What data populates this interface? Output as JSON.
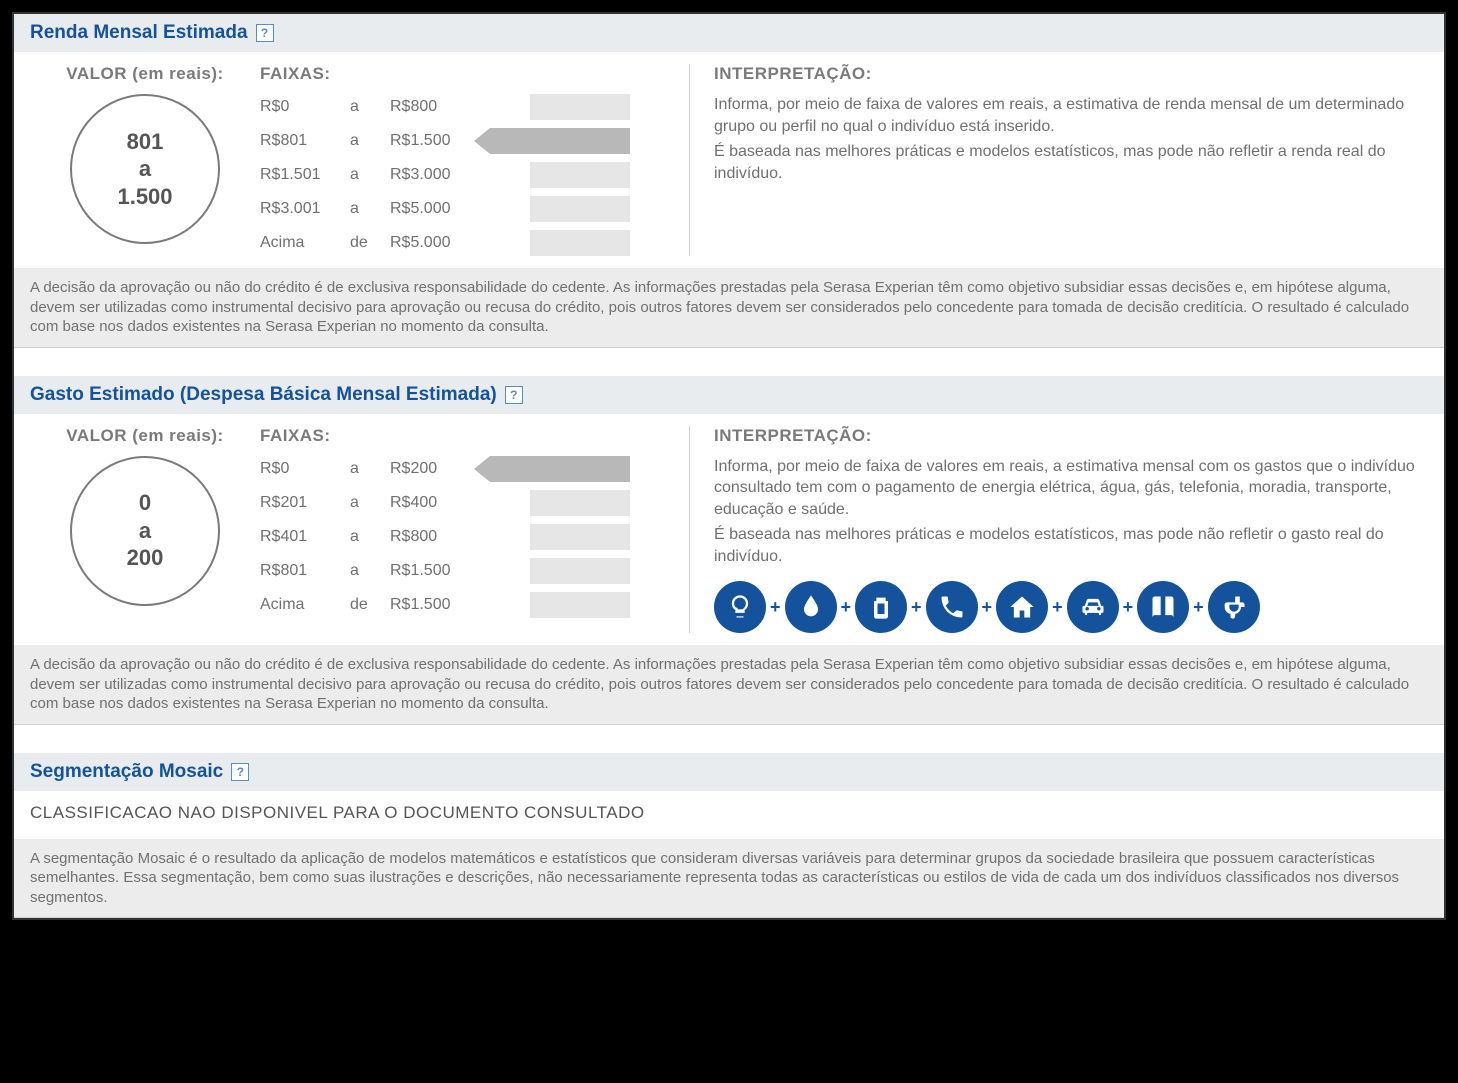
{
  "colors": {
    "brand": "#14539c",
    "textMuted": "#707070",
    "barDefault": "#e6e6e6",
    "barSelected": "#b8b8b8",
    "headerBg": "#e8ecef",
    "disclaimerBg": "#ececec"
  },
  "sections": {
    "renda": {
      "title": "Renda Mensal Estimada",
      "valorLabel": "VALOR (em reais):",
      "valorLine1": "801",
      "valorLine2": "a",
      "valorLine3": "1.500",
      "faixasLabel": "FAIXAS:",
      "faixas": [
        {
          "min": "R$0",
          "sep": "a",
          "max": "R$800",
          "selected": false
        },
        {
          "min": "R$801",
          "sep": "a",
          "max": "R$1.500",
          "selected": true
        },
        {
          "min": "R$1.501",
          "sep": "a",
          "max": "R$3.000",
          "selected": false
        },
        {
          "min": "R$3.001",
          "sep": "a",
          "max": "R$5.000",
          "selected": false
        },
        {
          "min": "Acima",
          "sep": "de",
          "max": "R$5.000",
          "selected": false
        }
      ],
      "interpLabel": "INTERPRETAÇÃO:",
      "interpP1": "Informa, por meio de faixa de valores em reais, a estimativa de renda mensal de um determinado grupo ou perfil no qual o indivíduo está inserido.",
      "interpP2": "É baseada nas melhores práticas e modelos estatísticos, mas pode não refletir a renda real do indivíduo.",
      "disclaimer": "A decisão da aprovação ou não do crédito é de exclusiva responsabilidade do cedente. As informações prestadas pela Serasa Experian têm como objetivo subsidiar essas decisões e, em hipótese alguma, devem ser utilizadas como instrumental decisivo para aprovação ou recusa do crédito, pois outros fatores devem ser considerados pelo concedente para tomada de decisão creditícia. O resultado é calculado com base nos dados existentes na Serasa Experian no momento da consulta."
    },
    "gasto": {
      "title": "Gasto Estimado (Despesa Básica Mensal Estimada)",
      "valorLabel": "VALOR (em reais):",
      "valorLine1": "0",
      "valorLine2": "a",
      "valorLine3": "200",
      "faixasLabel": "FAIXAS:",
      "faixas": [
        {
          "min": "R$0",
          "sep": "a",
          "max": "R$200",
          "selected": true
        },
        {
          "min": "R$201",
          "sep": "a",
          "max": "R$400",
          "selected": false
        },
        {
          "min": "R$401",
          "sep": "a",
          "max": "R$800",
          "selected": false
        },
        {
          "min": "R$801",
          "sep": "a",
          "max": "R$1.500",
          "selected": false
        },
        {
          "min": "Acima",
          "sep": "de",
          "max": "R$1.500",
          "selected": false
        }
      ],
      "interpLabel": "INTERPRETAÇÃO:",
      "interpP1": "Informa, por meio de faixa de valores em reais, a estimativa mensal com os gastos que o indivíduo consultado tem com o pagamento de energia elétrica, água, gás, telefonia, moradia, transporte, educação e saúde.",
      "interpP2": "É baseada nas melhores práticas e modelos estatísticos, mas pode não refletir o gasto real do indivíduo.",
      "icons": [
        "lightbulb-icon",
        "water-icon",
        "gas-icon",
        "phone-icon",
        "home-icon",
        "car-icon",
        "book-icon",
        "health-icon"
      ],
      "plus": "+",
      "disclaimer": "A decisão da aprovação ou não do crédito é de exclusiva responsabilidade do cedente. As informações prestadas pela Serasa Experian têm como objetivo subsidiar essas decisões e, em hipótese alguma, devem ser utilizadas como instrumental decisivo para aprovação ou recusa do crédito, pois outros fatores devem ser considerados pelo concedente para tomada de decisão creditícia. O resultado é calculado com base nos dados existentes na Serasa Experian no momento da consulta."
    },
    "mosaic": {
      "title": "Segmentação Mosaic",
      "message": "CLASSIFICACAO NAO DISPONIVEL PARA O DOCUMENTO CONSULTADO",
      "disclaimer": "A segmentação Mosaic é o resultado da aplicação de modelos matemáticos e estatísticos que consideram diversas variáveis para determinar grupos da sociedade brasileira que possuem características semelhantes. Essa segmentação, bem como suas ilustrações e descrições, não necessariamente representa todas as características ou estilos de vida de cada um dos indivíduos classificados nos diversos segmentos."
    }
  },
  "helpGlyph": "?"
}
